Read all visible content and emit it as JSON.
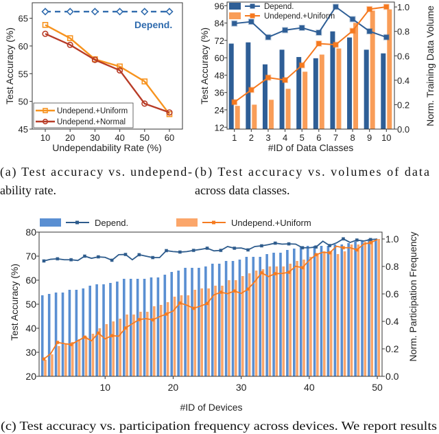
{
  "captions": {
    "a_line1": "(a)  Test accuracy vs. undepend-",
    "a_line2": "ability rate.",
    "b_line1": "(b)  Test accuracy vs. volumes of data",
    "b_line2": "across data classes.",
    "c_line1": "(c) Test accuracy vs. participation frequency across devices. We report results"
  },
  "chart_data": [
    {
      "type": "line",
      "xlabel": "Undependability Rate (%)",
      "ylabel": "Test Accuracy (%)",
      "x": [
        10,
        20,
        30,
        40,
        50,
        60
      ],
      "ylim": [
        45,
        67.8
      ],
      "yticks": [
        45,
        50,
        55,
        60,
        65
      ],
      "legend": "bottom-left",
      "series": [
        {
          "name": "Depend.",
          "color": "#2e6aad",
          "marker": "diamond",
          "dashed": true,
          "values": [
            66.2,
            66.2,
            66.2,
            66.2,
            66.2,
            66.2
          ]
        },
        {
          "name": "Undepend.+Uniform",
          "color": "#f7931e",
          "marker": "square",
          "values": [
            63.8,
            61.4,
            57.6,
            56.3,
            53.6,
            47.7
          ]
        },
        {
          "name": "Undepend.+Normal",
          "color": "#b83c27",
          "marker": "circle",
          "values": [
            62.2,
            60.2,
            57.5,
            55.6,
            49.6,
            48.0
          ]
        }
      ]
    },
    {
      "type": "bar+line",
      "xlabel": "#ID of Data Classes",
      "ylabel": "Test Accuracy (%)",
      "y2label": "Norm. Training Data Volume",
      "categories": [
        "1",
        "2",
        "3",
        "4",
        "5",
        "6",
        "7",
        "8",
        "9",
        "10"
      ],
      "ylim": [
        10.7,
        98.5
      ],
      "yticks": [
        12,
        24,
        36,
        48,
        60,
        72,
        84,
        96
      ],
      "y2lim": [
        0,
        1.04
      ],
      "y2ticks": [
        "0.0",
        "0.2",
        "0.4",
        "0.6",
        "0.8",
        "1.0"
      ],
      "legend": "top-left",
      "series": [
        {
          "name": "Depend.",
          "color": "#2e5e96",
          "bar_values": [
            0.7,
            0.71,
            0.53,
            0.65,
            0.59,
            0.58,
            0.8,
            0.75,
            0.65,
            0.62
          ],
          "line_values": [
            83.7,
            84.9,
            74.2,
            79.1,
            80.7,
            77.4,
            95.2,
            86.7,
            78.3,
            74.2
          ]
        },
        {
          "name": "Undepend.+Uniform",
          "color": "#f5791f",
          "bar_color": "#f99d58",
          "bar_values": [
            0.19,
            0.2,
            0.24,
            0.33,
            0.47,
            0.61,
            0.66,
            0.87,
            0.97,
            0.98
          ],
          "line_values": [
            29.3,
            37.8,
            46.3,
            44.6,
            54.8,
            69.8,
            69.0,
            78.6,
            93.6,
            95.2
          ]
        }
      ]
    },
    {
      "type": "bar+line",
      "xlabel": "#ID of Devices",
      "ylabel": "Test Accuracy (%)",
      "y2label": "Norm. Participation Frequency",
      "xlim": [
        0.3,
        50.7
      ],
      "xticks": [
        10,
        20,
        30,
        40,
        50
      ],
      "ylim": [
        20,
        80
      ],
      "yticks": [
        20,
        30,
        40,
        50,
        60,
        70,
        80
      ],
      "y2lim": [
        0,
        1.05
      ],
      "y2ticks": [
        "0.0",
        "0.2",
        "0.4",
        "0.6",
        "0.8",
        "1.0"
      ],
      "legend": "top",
      "series": [
        {
          "name": "Depend.",
          "color": "#2d5b8c",
          "bar_color": "#5a8fd2",
          "bar_values": [
            0.59,
            0.6,
            0.61,
            0.61,
            0.63,
            0.63,
            0.64,
            0.66,
            0.67,
            0.67,
            0.68,
            0.69,
            0.71,
            0.71,
            0.71,
            0.71,
            0.72,
            0.72,
            0.74,
            0.76,
            0.77,
            0.79,
            0.79,
            0.79,
            0.8,
            0.82,
            0.82,
            0.84,
            0.84,
            0.85,
            0.87,
            0.87,
            0.87,
            0.89,
            0.9,
            0.9,
            0.92,
            0.93,
            0.94,
            0.95,
            0.95,
            0.95,
            0.95,
            0.96,
            0.96,
            0.97,
            0.98,
            0.99,
            1.0,
            1.0
          ],
          "line_values": [
            68.0,
            68.7,
            68.9,
            68.5,
            68.5,
            68.2,
            70.0,
            69.1,
            69.7,
            69.5,
            68.3,
            70.6,
            70.7,
            68.5,
            70.6,
            70.0,
            69.4,
            69.4,
            72.3,
            71.9,
            71.7,
            71.9,
            72.4,
            72.8,
            73.3,
            72.2,
            72.4,
            74.0,
            73.3,
            73.4,
            72.6,
            74.0,
            74.3,
            74.8,
            75.4,
            75.0,
            75.1,
            75.0,
            73.5,
            73.5,
            73.8,
            76.2,
            74.4,
            75.5,
            77.2,
            75.7,
            76.7,
            76.3,
            76.9,
            77.1
          ]
        },
        {
          "name": "Undepend.+Uniform",
          "color": "#f57b20",
          "bar_color": "#fba66a",
          "bar_values": [
            0.12,
            0.16,
            0.22,
            0.24,
            0.25,
            0.27,
            0.29,
            0.31,
            0.35,
            0.38,
            0.4,
            0.42,
            0.45,
            0.45,
            0.47,
            0.47,
            0.51,
            0.52,
            0.54,
            0.58,
            0.59,
            0.59,
            0.63,
            0.64,
            0.64,
            0.66,
            0.66,
            0.7,
            0.7,
            0.73,
            0.75,
            0.77,
            0.78,
            0.8,
            0.8,
            0.8,
            0.82,
            0.84,
            0.85,
            0.87,
            0.89,
            0.91,
            0.91,
            0.89,
            0.91,
            0.96,
            0.96,
            0.98,
            0.99,
            1.0
          ],
          "line_values": [
            27.2,
            29.4,
            34.1,
            33.6,
            33.2,
            34.8,
            36.3,
            34.8,
            38.0,
            35.6,
            36.9,
            36.7,
            40.1,
            41.9,
            43.6,
            44.0,
            43.5,
            44.8,
            45.9,
            47.2,
            50.5,
            49.6,
            48.3,
            49.2,
            50.3,
            53.9,
            55.0,
            54.4,
            55.5,
            54.5,
            56.3,
            59.4,
            63.1,
            61.5,
            62.7,
            62.8,
            63.3,
            65.8,
            65.2,
            68.3,
            70.6,
            71.6,
            71.4,
            74.1,
            73.5,
            73.5,
            72.6,
            75.0,
            75.6,
            76.9
          ]
        }
      ]
    }
  ]
}
